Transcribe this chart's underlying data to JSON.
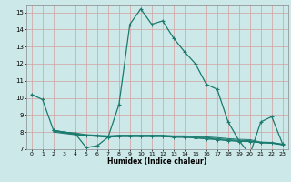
{
  "xlabel": "Humidex (Indice chaleur)",
  "bg_color": "#cce8e8",
  "grid_color": "#d4a0a0",
  "line_color": "#1a7a6e",
  "xlim": [
    -0.5,
    23.5
  ],
  "ylim": [
    7,
    15.4
  ],
  "yticks": [
    7,
    8,
    9,
    10,
    11,
    12,
    13,
    14,
    15
  ],
  "xticks": [
    0,
    1,
    2,
    3,
    4,
    5,
    6,
    7,
    8,
    9,
    10,
    11,
    12,
    13,
    14,
    15,
    16,
    17,
    18,
    19,
    20,
    21,
    22,
    23
  ],
  "line1_x": [
    0,
    1,
    2,
    3,
    4,
    5,
    6,
    7,
    8,
    9,
    10,
    11,
    12,
    13,
    14,
    15,
    16,
    17,
    18,
    19,
    20,
    21,
    22,
    23
  ],
  "line1_y": [
    10.2,
    9.9,
    8.1,
    8.0,
    7.9,
    7.1,
    7.2,
    7.7,
    9.6,
    14.3,
    15.2,
    14.3,
    14.5,
    13.5,
    12.7,
    12.0,
    10.8,
    10.5,
    8.6,
    7.5,
    6.7,
    8.6,
    8.9,
    7.3
  ],
  "line2_x": [
    2,
    3,
    4,
    5,
    6,
    7,
    8,
    9,
    10,
    11,
    12,
    13,
    14,
    15,
    16,
    17,
    18,
    19,
    20,
    21,
    22,
    23
  ],
  "line2_y": [
    8.1,
    8.0,
    7.9,
    7.8,
    7.8,
    7.7,
    7.75,
    7.75,
    7.75,
    7.75,
    7.75,
    7.7,
    7.7,
    7.65,
    7.6,
    7.55,
    7.5,
    7.45,
    7.45,
    7.38,
    7.35,
    7.25
  ],
  "line3_x": [
    2,
    3,
    4,
    5,
    6,
    7,
    8,
    9,
    10,
    11,
    12,
    13,
    14,
    15,
    16,
    17,
    18,
    19,
    20,
    21,
    22,
    23
  ],
  "line3_y": [
    8.1,
    8.0,
    7.95,
    7.85,
    7.82,
    7.78,
    7.82,
    7.82,
    7.82,
    7.82,
    7.82,
    7.78,
    7.78,
    7.75,
    7.72,
    7.68,
    7.62,
    7.58,
    7.56,
    7.42,
    7.4,
    7.3
  ],
  "line4_x": [
    2,
    3,
    4,
    5,
    6,
    7,
    8,
    9,
    10,
    11,
    12,
    13,
    14,
    15,
    16,
    17,
    18,
    19,
    20,
    21,
    22,
    23
  ],
  "line4_y": [
    8.05,
    7.95,
    7.88,
    7.82,
    7.78,
    7.74,
    7.78,
    7.78,
    7.78,
    7.78,
    7.78,
    7.74,
    7.74,
    7.72,
    7.68,
    7.62,
    7.56,
    7.52,
    7.5,
    7.4,
    7.38,
    7.28
  ],
  "line5_x": [
    2,
    3,
    4,
    5,
    6,
    7,
    8,
    9,
    10,
    11,
    12,
    13,
    14,
    15,
    16,
    17,
    18,
    19,
    20,
    21,
    22,
    23
  ],
  "line5_y": [
    8.0,
    7.92,
    7.84,
    7.8,
    7.74,
    7.7,
    7.74,
    7.74,
    7.74,
    7.74,
    7.74,
    7.7,
    7.7,
    7.68,
    7.64,
    7.58,
    7.52,
    7.48,
    7.46,
    7.38,
    7.36,
    7.26
  ]
}
